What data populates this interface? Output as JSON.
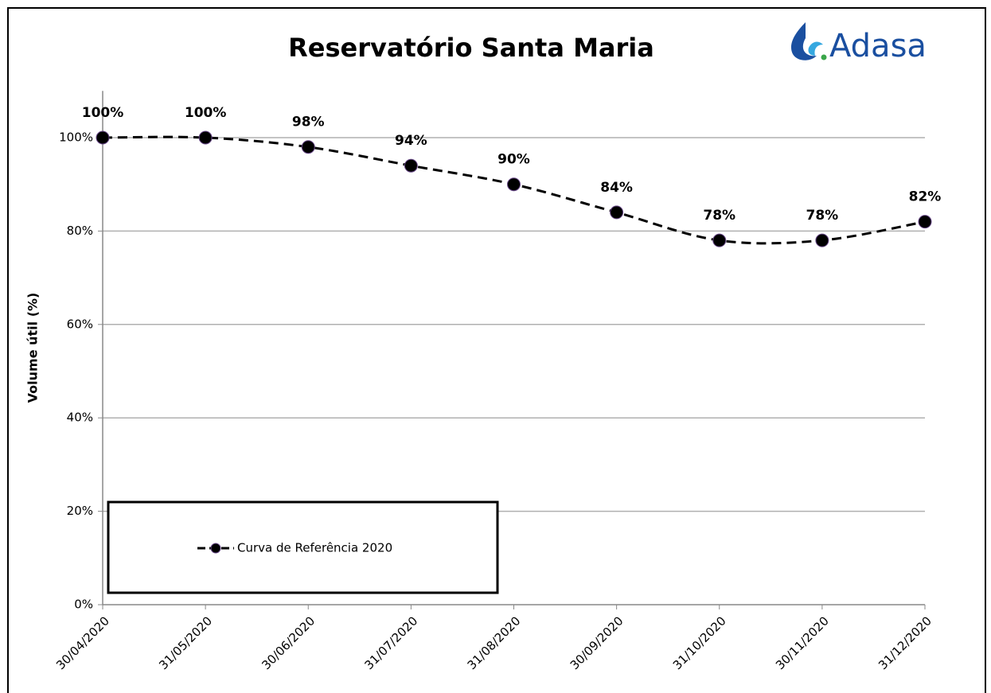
{
  "chart_data": {
    "type": "line",
    "title": "Reservatório Santa Maria",
    "logo": "Adasa",
    "y_label": "Volume útil (%)",
    "categories": [
      "30/04/2020",
      "31/05/2020",
      "30/06/2020",
      "31/07/2020",
      "31/08/2020",
      "30/09/2020",
      "31/10/2020",
      "30/11/2020",
      "31/12/2020"
    ],
    "series": [
      {
        "name": "Curva de Referência 2020",
        "color": "#000000",
        "values": [
          100,
          100,
          98,
          94,
          90,
          84,
          78,
          78,
          82
        ],
        "value_labels": [
          "100%",
          "100%",
          "98%",
          "94%",
          "90%",
          "84%",
          "78%",
          "78%",
          "82%"
        ]
      }
    ],
    "ylim": [
      0,
      110
    ],
    "yticks": [
      {
        "value": 0,
        "label": "0%"
      },
      {
        "value": 20,
        "label": "20%"
      },
      {
        "value": 40,
        "label": "40%"
      },
      {
        "value": 60,
        "label": "60%"
      },
      {
        "value": 80,
        "label": "80%"
      },
      {
        "value": 100,
        "label": "100%"
      }
    ],
    "grid": true,
    "legend": "lower left"
  }
}
